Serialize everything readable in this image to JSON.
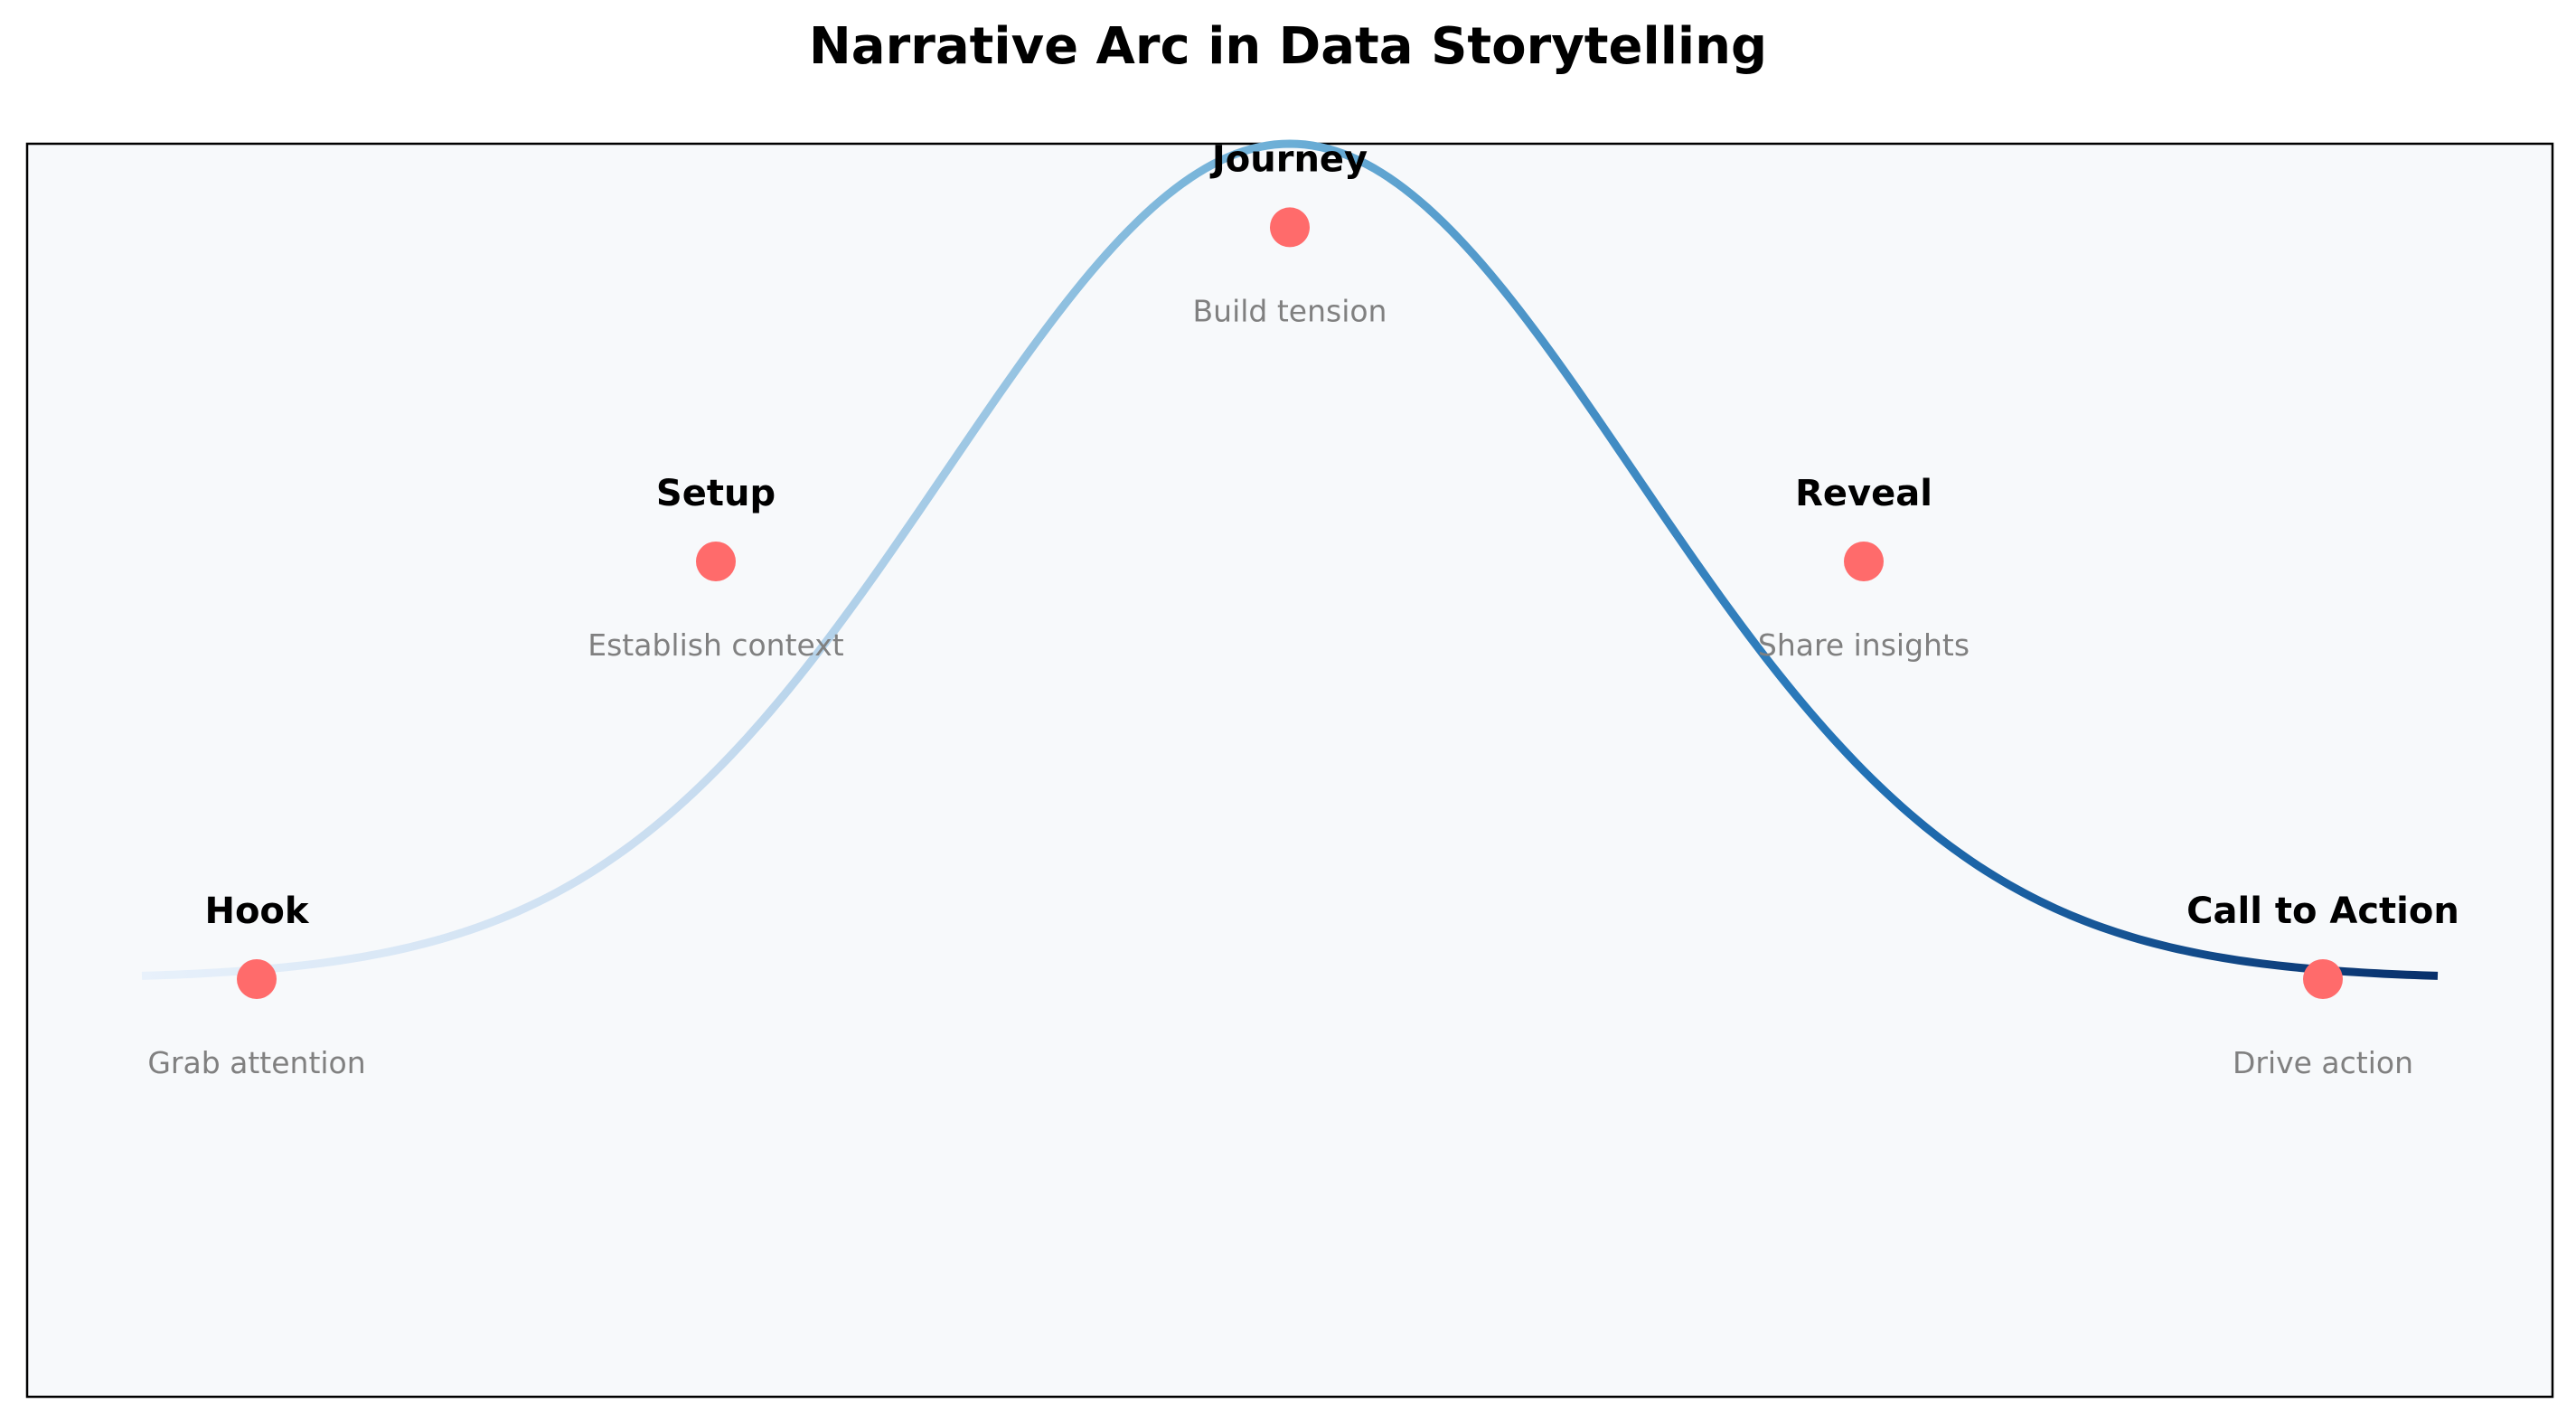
{
  "chart_data": {
    "type": "line",
    "title": "Narrative Arc in Data Storytelling",
    "xlabel": "",
    "ylabel": "",
    "xlim": [
      -1,
      10
    ],
    "ylim": [
      -1,
      2
    ],
    "grid": false,
    "axes_visible": false,
    "background_color": "#f7f9fb",
    "curve": {
      "shape": "gaussian",
      "x_range": [
        -0.5,
        9.5
      ],
      "baseline": 0,
      "peak": 2,
      "center": 4.5,
      "width": 1.5,
      "colormap": [
        "#e8f1fb",
        "#c6dbef",
        "#6baed6",
        "#2171b5",
        "#08306b"
      ]
    },
    "marker_color": "#ff6b6b",
    "stages": [
      {
        "name": "Hook",
        "description": "Grab attention",
        "x": 0,
        "y": 0
      },
      {
        "name": "Setup",
        "description": "Establish context",
        "x": 2,
        "y": 1
      },
      {
        "name": "Journey",
        "description": "Build tension",
        "x": 4.5,
        "y": 1.8
      },
      {
        "name": "Reveal",
        "description": "Share insights",
        "x": 7,
        "y": 1
      },
      {
        "name": "Call to Action",
        "description": "Drive action",
        "x": 9,
        "y": 0
      }
    ]
  }
}
